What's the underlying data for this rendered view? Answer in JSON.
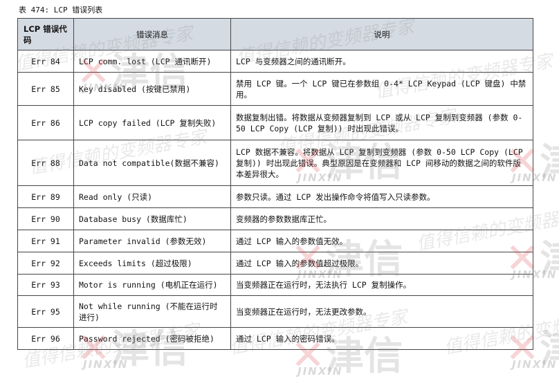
{
  "caption": "表 474: LCP 错误列表",
  "headers": [
    "LCP 错误代码",
    "错误消息",
    "说明"
  ],
  "rows": [
    {
      "code": "Err 84",
      "message": "LCP comm. lost (LCP 通讯断开)",
      "description": "LCP 与变频器之间的通讯断开。"
    },
    {
      "code": "Err 85",
      "message": "Key disabled (按键已禁用)",
      "description": "禁用 LCP 键。一个 LCP 键已在参数组 0-4* LCP Keypad (LCP 键盘) 中禁用。"
    },
    {
      "code": "Err 86",
      "message": "LCP copy failed (LCP 复制失败)",
      "description": "数据复制出错。将数据从变频器复制到 LCP 或从 LCP 复制到变频器 (参数 0-50 LCP Copy (LCP 复制)) 时出现此错误。"
    },
    {
      "code": "Err 88",
      "message": "Data not compatible(数据不兼容)",
      "description": "LCP 数据不兼容。将数据从 LCP 复制到变频器 (参数 0-50 LCP Copy (LCP 复制)) 时出现此错误。典型原因是在变频器和 LCP 间移动的数据之间的软件版本差异很大。"
    },
    {
      "code": "Err 89",
      "message": "Read only (只读)",
      "description": "参数只读。通过 LCP 发出操作命令将值写入只读参数。"
    },
    {
      "code": "Err 90",
      "message": "Database busy (数据库忙)",
      "description": "变频器的参数数据库正忙。"
    },
    {
      "code": "Err 91",
      "message": "Parameter invalid (参数无效)",
      "description": "通过 LCP 输入的参数值无效。"
    },
    {
      "code": "Err 92",
      "message": "Exceeds limits (超过极限)",
      "description": "通过 LCP 输入的参数值超过极限。"
    },
    {
      "code": "Err 93",
      "message": "Motor is running (电机正在运行)",
      "description": "当变频器正在运行时，无法执行 LCP 复制操作。"
    },
    {
      "code": "Err 95",
      "message": "Not while running (不能在运行时进行)",
      "description": "当变频器正在运行时，无法更改参数。"
    },
    {
      "code": "Err 96",
      "message": "Password rejected (密码被拒绝)",
      "description": "通过 LCP 输入的密码错误。"
    }
  ],
  "watermark": {
    "slogan": "值得信赖的变频器专家",
    "brand_cn": "津信",
    "brand_en": "JINXIN"
  }
}
